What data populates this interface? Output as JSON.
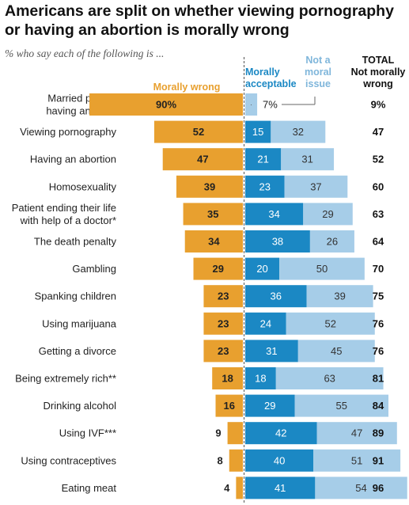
{
  "title": "Americans are split on whether viewing pornography or having an abortion is morally wrong",
  "subtitle": "% who say each of the following is ...",
  "chart_data": {
    "type": "bar",
    "orientation": "horizontal",
    "stacked": "diverging",
    "series": [
      {
        "name": "Morally wrong",
        "color": "#E8A02F",
        "values": [
          90,
          52,
          47,
          39,
          35,
          34,
          29,
          23,
          23,
          23,
          18,
          16,
          9,
          8,
          4
        ]
      },
      {
        "name": "Morally acceptable",
        "color": "#1B88C4",
        "values": [
          null,
          15,
          21,
          23,
          34,
          38,
          20,
          36,
          24,
          31,
          18,
          29,
          42,
          40,
          41
        ]
      },
      {
        "name": "Not a moral issue",
        "color": "#A6CDE8",
        "values": [
          7,
          32,
          31,
          37,
          29,
          26,
          50,
          39,
          52,
          45,
          63,
          55,
          47,
          51,
          54
        ]
      }
    ],
    "total": {
      "header": "TOTAL Not morally wrong",
      "values": [
        9,
        47,
        52,
        60,
        63,
        64,
        70,
        75,
        76,
        76,
        81,
        84,
        89,
        91,
        96
      ]
    },
    "categories": [
      "Married people having an affair",
      "Viewing pornography",
      "Having an abortion",
      "Homosexuality",
      "Patient ending their life with help of a doctor*",
      "The death penalty",
      "Gambling",
      "Spanking children",
      "Using marijuana",
      "Getting a divorce",
      "Being extremely rich**",
      "Drinking alcohol",
      "Using IVF***",
      "Using contraceptives",
      "Eating meat"
    ],
    "category_lines": [
      [
        "Married people",
        "having an affair"
      ],
      [
        "Viewing pornography"
      ],
      [
        "Having an abortion"
      ],
      [
        "Homosexuality"
      ],
      [
        "Patient ending their life",
        "with help of a doctor*"
      ],
      [
        "The death penalty"
      ],
      [
        "Gambling"
      ],
      [
        "Spanking children"
      ],
      [
        "Using marijuana"
      ],
      [
        "Getting a divorce"
      ],
      [
        "Being extremely rich**"
      ],
      [
        "Drinking alcohol"
      ],
      [
        "Using IVF***"
      ],
      [
        "Using contraceptives"
      ],
      [
        "Eating meat"
      ]
    ],
    "headers": {
      "wrong": "Morally wrong",
      "acceptable": [
        "Morally",
        "acceptable"
      ],
      "not_moral": [
        "Not a",
        "moral",
        "issue"
      ],
      "total": [
        "TOTAL",
        "Not morally",
        "wrong"
      ]
    },
    "legend": "column headers above bars",
    "grid": false
  }
}
